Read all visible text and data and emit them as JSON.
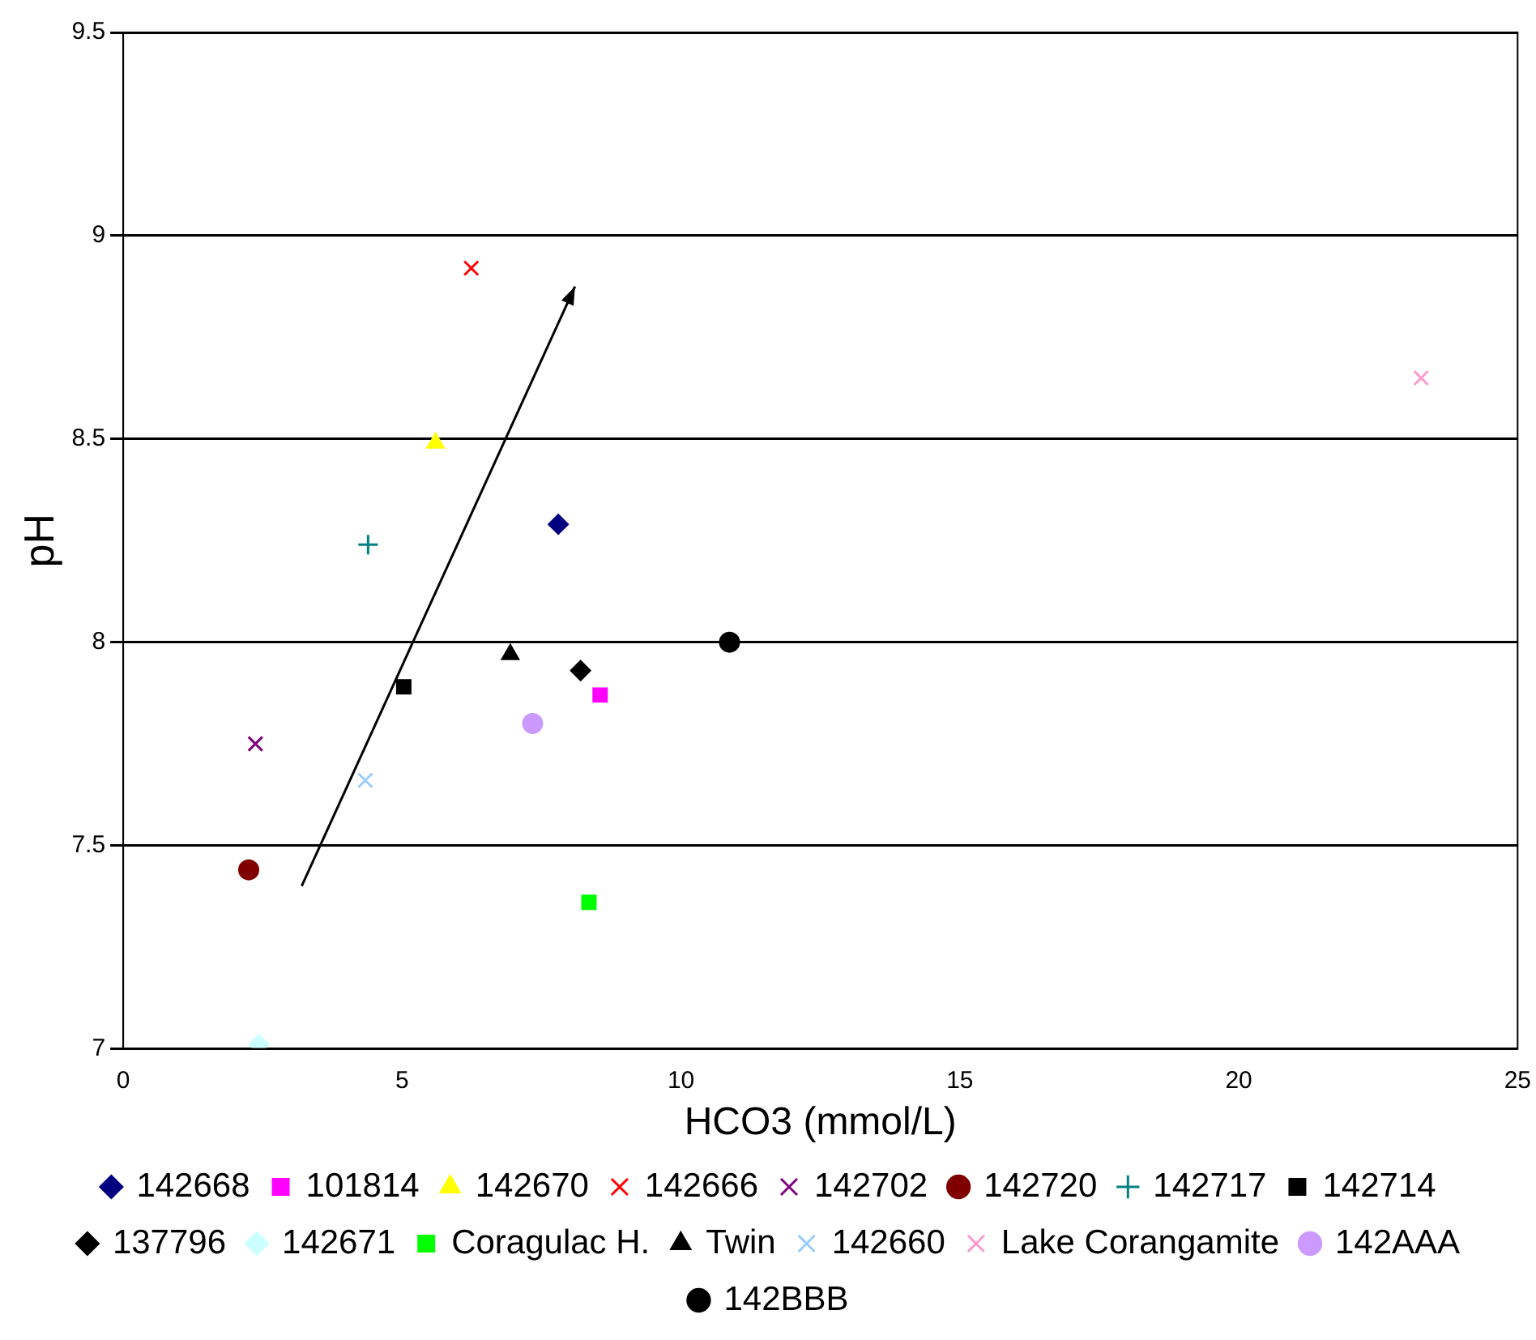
{
  "chart_data": {
    "type": "scatter",
    "xlabel": "HCO3 (mmol/L)",
    "ylabel": "pH",
    "xlim": [
      0,
      25
    ],
    "xticks": [
      0,
      5,
      10,
      15,
      20,
      25
    ],
    "ylim": [
      7,
      9.5
    ],
    "yticks": [
      7,
      7.5,
      8,
      8.5,
      9,
      9.5
    ],
    "grid": "y",
    "legend": "bottom",
    "series": [
      {
        "name": "142668",
        "color": "#000080",
        "marker": "diamond",
        "x": [
          7.8
        ],
        "values": [
          8.29
        ]
      },
      {
        "name": "101814",
        "color": "#ff00ff",
        "marker": "square",
        "x": [
          8.55
        ],
        "values": [
          7.87
        ]
      },
      {
        "name": "142670",
        "color": "#ffff00",
        "marker": "triangle",
        "x": [
          5.6
        ],
        "values": [
          8.49
        ]
      },
      {
        "name": "142666",
        "color": "#ff0000",
        "marker": "cross",
        "x": [
          6.24
        ],
        "values": [
          8.92
        ]
      },
      {
        "name": "142702",
        "color": "#800080",
        "marker": "cross",
        "x": [
          2.37
        ],
        "values": [
          7.75
        ]
      },
      {
        "name": "142720",
        "color": "#800000",
        "marker": "circle",
        "x": [
          2.25
        ],
        "values": [
          7.44
        ]
      },
      {
        "name": "142717",
        "color": "#008080",
        "marker": "plus",
        "x": [
          4.39
        ],
        "values": [
          8.24
        ]
      },
      {
        "name": "142714",
        "color": "#000000",
        "marker": "square",
        "x": [
          5.03
        ],
        "values": [
          7.89
        ]
      },
      {
        "name": "137796",
        "color": "#000000",
        "marker": "diamond",
        "x": [
          8.2
        ],
        "values": [
          7.93
        ]
      },
      {
        "name": "142671",
        "color": "#ccffff",
        "marker": "diamond",
        "x": [
          2.43
        ],
        "values": [
          7.01
        ]
      },
      {
        "name": "Coragulac H.",
        "color": "#00ff00",
        "marker": "square",
        "x": [
          8.35
        ],
        "values": [
          7.36
        ]
      },
      {
        "name": "Twin",
        "color": "#000000",
        "marker": "triangle",
        "x": [
          6.94
        ],
        "values": [
          7.97
        ]
      },
      {
        "name": "142660",
        "color": "#99ccff",
        "marker": "cross",
        "x": [
          4.34
        ],
        "values": [
          7.66
        ]
      },
      {
        "name": "Lake Corangamite",
        "color": "#ff99cc",
        "marker": "cross",
        "x": [
          23.27
        ],
        "values": [
          8.65
        ]
      },
      {
        "name": "142AAA",
        "color": "#cc99ff",
        "marker": "circle",
        "x": [
          7.34
        ],
        "values": [
          7.8
        ]
      },
      {
        "name": "142BBB",
        "color": "#000000",
        "marker": "circle",
        "x": [
          10.87
        ],
        "values": [
          8.0
        ]
      }
    ]
  }
}
